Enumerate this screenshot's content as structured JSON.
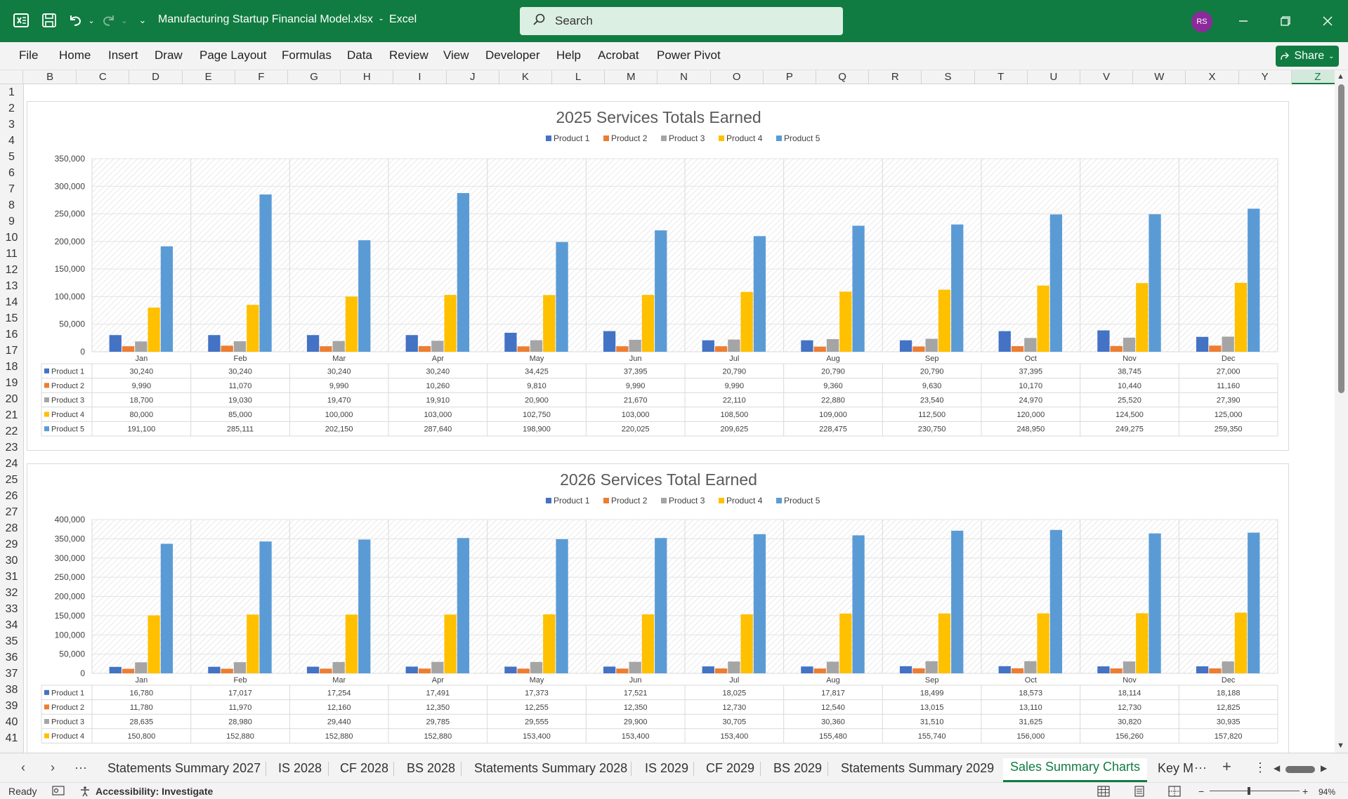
{
  "titlebar": {
    "filename": "Manufacturing Startup Financial Model.xlsx",
    "separator": "-",
    "app": "Excel",
    "search_placeholder": "Search",
    "avatar_initials": "RS"
  },
  "ribbon": {
    "tabs": [
      "File",
      "Home",
      "Insert",
      "Draw",
      "Page Layout",
      "Formulas",
      "Data",
      "Review",
      "View",
      "Developer",
      "Help",
      "Acrobat",
      "Power Pivot"
    ],
    "share_label": "Share"
  },
  "columns": [
    "B",
    "C",
    "D",
    "E",
    "F",
    "G",
    "H",
    "I",
    "J",
    "K",
    "L",
    "M",
    "N",
    "O",
    "P",
    "Q",
    "R",
    "S",
    "T",
    "U",
    "V",
    "W",
    "X",
    "Y",
    "Z"
  ],
  "selected_column": "Z",
  "rows": [
    "1",
    "2",
    "3",
    "4",
    "5",
    "6",
    "7",
    "8",
    "9",
    "10",
    "11",
    "12",
    "13",
    "14",
    "15",
    "16",
    "17",
    "18",
    "19",
    "20",
    "21",
    "22",
    "23",
    "24",
    "25",
    "26",
    "27",
    "28",
    "29",
    "30",
    "31",
    "32",
    "33",
    "34",
    "35",
    "36",
    "37",
    "38",
    "39",
    "40",
    "41"
  ],
  "colors": {
    "accent": "#107c41",
    "product1": "#4472c4",
    "product2": "#ed7d31",
    "product3": "#a5a5a5",
    "product4": "#ffc000",
    "product5": "#5b9bd5"
  },
  "chart_data": [
    {
      "type": "bar",
      "title": "2025 Services Totals Earned",
      "categories": [
        "Jan",
        "Feb",
        "Mar",
        "Apr",
        "May",
        "Jun",
        "Jul",
        "Aug",
        "Sep",
        "Oct",
        "Nov",
        "Dec"
      ],
      "ylim": [
        0,
        350000
      ],
      "yticks": [
        "350,000",
        "300,000",
        "250,000",
        "200,000",
        "150,000",
        "100,000",
        "50,000",
        "0"
      ],
      "legend_position": "top",
      "data_table": true,
      "series": [
        {
          "name": "Product 1",
          "values": [
            30240,
            30240,
            30240,
            30240,
            34425,
            37395,
            20790,
            20790,
            20790,
            37395,
            38745,
            27000
          ],
          "labels": [
            "30,240",
            "30,240",
            "30,240",
            "30,240",
            "34,425",
            "37,395",
            "20,790",
            "20,790",
            "20,790",
            "37,395",
            "38,745",
            "27,000"
          ]
        },
        {
          "name": "Product 2",
          "values": [
            9990,
            11070,
            9990,
            10260,
            9810,
            9990,
            9990,
            9360,
            9630,
            10170,
            10440,
            11160
          ],
          "labels": [
            "9,990",
            "11,070",
            "9,990",
            "10,260",
            "9,810",
            "9,990",
            "9,990",
            "9,360",
            "9,630",
            "10,170",
            "10,440",
            "11,160"
          ]
        },
        {
          "name": "Product 3",
          "values": [
            18700,
            19030,
            19470,
            19910,
            20900,
            21670,
            22110,
            22880,
            23540,
            24970,
            25520,
            27390
          ],
          "labels": [
            "18,700",
            "19,030",
            "19,470",
            "19,910",
            "20,900",
            "21,670",
            "22,110",
            "22,880",
            "23,540",
            "24,970",
            "25,520",
            "27,390"
          ]
        },
        {
          "name": "Product 4",
          "values": [
            80000,
            85000,
            100000,
            103000,
            102750,
            103000,
            108500,
            109000,
            112500,
            120000,
            124500,
            125000
          ],
          "labels": [
            "80,000",
            "85,000",
            "100,000",
            "103,000",
            "102,750",
            "103,000",
            "108,500",
            "109,000",
            "112,500",
            "120,000",
            "124,500",
            "125,000"
          ]
        },
        {
          "name": "Product 5",
          "values": [
            191100,
            285111,
            202150,
            287640,
            198900,
            220025,
            209625,
            228475,
            230750,
            248950,
            249275,
            259350
          ],
          "labels": [
            "191,100",
            "285,111",
            "202,150",
            "287,640",
            "198,900",
            "220,025",
            "209,625",
            "228,475",
            "230,750",
            "248,950",
            "249,275",
            "259,350"
          ]
        }
      ]
    },
    {
      "type": "bar",
      "title": "2026 Services Total Earned",
      "categories": [
        "Jan",
        "Feb",
        "Mar",
        "Apr",
        "May",
        "Jun",
        "Jul",
        "Aug",
        "Sep",
        "Oct",
        "Nov",
        "Dec"
      ],
      "ylim": [
        0,
        400000
      ],
      "yticks": [
        "400,000",
        "350,000",
        "300,000",
        "250,000",
        "200,000",
        "150,000",
        "100,000",
        "50,000",
        "0"
      ],
      "legend_position": "top",
      "data_table": true,
      "series": [
        {
          "name": "Product 1",
          "values": [
            16780,
            17017,
            17254,
            17491,
            17373,
            17521,
            18025,
            17817,
            18499,
            18573,
            18114,
            18188
          ],
          "labels": [
            "16,780",
            "17,017",
            "17,254",
            "17,491",
            "17,373",
            "17,521",
            "18,025",
            "17,817",
            "18,499",
            "18,573",
            "18,114",
            "18,188"
          ]
        },
        {
          "name": "Product 2",
          "values": [
            11780,
            11970,
            12160,
            12350,
            12255,
            12350,
            12730,
            12540,
            13015,
            13110,
            12730,
            12825
          ],
          "labels": [
            "11,780",
            "11,970",
            "12,160",
            "12,350",
            "12,255",
            "12,350",
            "12,730",
            "12,540",
            "13,015",
            "13,110",
            "12,730",
            "12,825"
          ]
        },
        {
          "name": "Product 3",
          "values": [
            28635,
            28980,
            29440,
            29785,
            29555,
            29900,
            30705,
            30360,
            31510,
            31625,
            30820,
            30935
          ],
          "labels": [
            "28,635",
            "28,980",
            "29,440",
            "29,785",
            "29,555",
            "29,900",
            "30,705",
            "30,360",
            "31,510",
            "31,625",
            "30,820",
            "30,935"
          ]
        },
        {
          "name": "Product 4",
          "values": [
            150800,
            152880,
            152880,
            152880,
            153400,
            153400,
            153400,
            155480,
            155740,
            156000,
            156260,
            157820
          ],
          "labels": [
            "150,800",
            "152,880",
            "152,880",
            "152,880",
            "153,400",
            "153,400",
            "153,400",
            "155,480",
            "155,740",
            "156,000",
            "156,260",
            "157,820"
          ]
        },
        {
          "name": "Product 5",
          "values": [
            337000,
            343000,
            348000,
            352000,
            349000,
            352000,
            362000,
            359000,
            371000,
            373000,
            364000,
            366000
          ]
        }
      ]
    }
  ],
  "sheet_tabs": {
    "tabs": [
      "Statements Summary 2027",
      "IS 2028",
      "CF 2028",
      "BS 2028",
      "Statements Summary 2028",
      "IS 2029",
      "CF 2029",
      "BS 2029",
      "Statements Summary 2029",
      "Sales Summary Charts",
      "Key M"
    ],
    "active": "Sales Summary Charts",
    "more": "···",
    "add": "+"
  },
  "statusbar": {
    "ready": "Ready",
    "accessibility": "Accessibility: Investigate",
    "zoom": "94%"
  }
}
